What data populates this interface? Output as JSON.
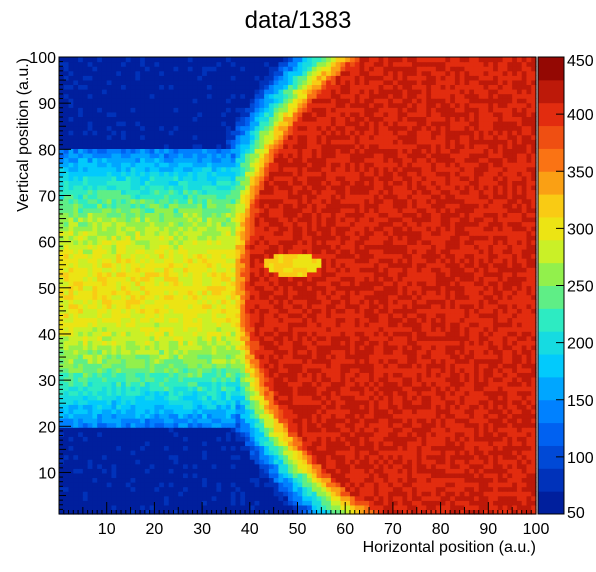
{
  "chart_data": {
    "type": "heatmap",
    "title": "data/1383",
    "xlabel": "Horizontal position (a.u.)",
    "ylabel": "Vertical position (a.u.)",
    "xlim": [
      0,
      100
    ],
    "ylim": [
      1,
      100
    ],
    "xticks": [
      10,
      20,
      30,
      40,
      50,
      60,
      70,
      80,
      90,
      100
    ],
    "yticks": [
      10,
      20,
      30,
      40,
      50,
      60,
      70,
      80,
      90,
      100
    ],
    "bins_x": 100,
    "bins_y": 100,
    "zlim": [
      50,
      450
    ],
    "colorbar_ticks": [
      "50",
      "100",
      "150",
      "200",
      "250",
      "300",
      "350",
      "400",
      "450"
    ],
    "colorbar_levels": 20,
    "regions": [
      {
        "name": "background",
        "value": 55
      },
      {
        "name": "beam-band",
        "x_range": [
          0,
          35
        ],
        "y_range": [
          21,
          81
        ],
        "peak_value": 300,
        "center_y": 50
      },
      {
        "name": "disc",
        "center": [
          100,
          52
        ],
        "radius": 65,
        "value": 410,
        "rim_value": 250
      },
      {
        "name": "hot-spot",
        "center": [
          49,
          55
        ],
        "value": 310
      }
    ]
  }
}
